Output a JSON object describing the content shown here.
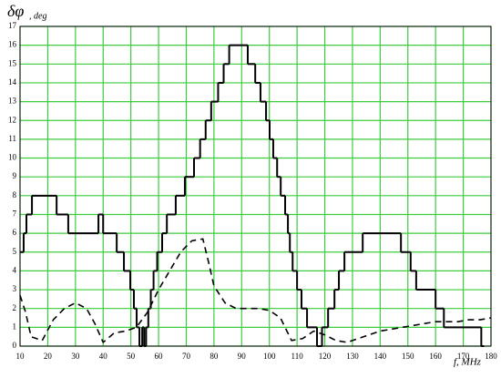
{
  "chart_data": {
    "type": "line",
    "ylabel": "δφ",
    "ylabel_sub": ", deg",
    "xlabel": "f, MHz",
    "xlim": [
      10,
      180
    ],
    "xticks": [
      10,
      20,
      30,
      40,
      50,
      60,
      70,
      80,
      90,
      100,
      110,
      120,
      130,
      140,
      150,
      160,
      170,
      180
    ],
    "ylim": [
      0,
      17
    ],
    "yticks": [
      0,
      1,
      2,
      3,
      4,
      5,
      6,
      7,
      8,
      9,
      10,
      11,
      12,
      13,
      14,
      15,
      16,
      17
    ],
    "grid": true,
    "grid_color": "#3ccc3c",
    "series": [
      {
        "color": "#000000",
        "linestyle": "solid",
        "drawstyle": "steps-post",
        "x": [
          10,
          11.3,
          12.3,
          14.3,
          23.2,
          27.4,
          38.3,
          40,
          44.9,
          47.5,
          49.8,
          51.1,
          52.1,
          53.1,
          54.1,
          54.8,
          55.5,
          56.3,
          57.2,
          58.2,
          59.5,
          61.3,
          63,
          66.2,
          69.5,
          72.8,
          75,
          77,
          79,
          81.5,
          83.5,
          85.5,
          87.6,
          92.2,
          94.9,
          96.8,
          98.8,
          100.1,
          101.4,
          102.8,
          104.1,
          105.7,
          106.7,
          107.4,
          108.4,
          110,
          111.6,
          113.6,
          117.2,
          119,
          121.2,
          123.5,
          125.1,
          127.1,
          133.7,
          147.5,
          151,
          153,
          160,
          163,
          176.5,
          177.5
        ],
        "values": [
          5,
          6,
          7,
          8,
          7,
          6,
          7,
          6,
          5,
          4,
          3,
          2,
          1,
          0,
          1,
          0,
          1,
          2,
          3,
          4,
          5,
          6,
          7,
          8,
          9,
          10,
          11,
          12,
          13,
          14,
          15,
          16,
          16,
          15,
          14,
          13,
          12,
          11,
          10,
          9,
          8,
          7,
          6,
          5,
          4,
          3,
          2,
          1,
          0,
          1,
          2,
          3,
          4,
          5,
          6,
          5,
          4,
          3,
          2,
          1,
          0,
          0
        ]
      },
      {
        "color": "#000000",
        "linestyle": "dashed",
        "drawstyle": "default",
        "x": [
          10,
          12,
          14,
          18,
          22,
          26,
          30,
          34,
          37,
          40,
          44,
          48,
          52,
          56,
          60,
          64,
          68,
          72,
          76,
          78,
          80,
          84,
          88,
          92,
          96,
          100,
          104,
          108,
          112,
          116,
          120,
          124,
          128,
          132,
          136,
          140,
          144,
          148,
          152,
          156,
          160,
          164,
          168,
          172,
          176,
          180
        ],
        "values": [
          2.7,
          1.8,
          0.5,
          0.3,
          1.4,
          2,
          2.3,
          2,
          1.2,
          0.2,
          0.7,
          0.8,
          1,
          1.8,
          3,
          4,
          5,
          5.6,
          5.7,
          4.5,
          3.2,
          2.3,
          2,
          2,
          2,
          1.9,
          1.5,
          0.3,
          0.4,
          0.8,
          0.6,
          0.3,
          0.2,
          0.4,
          0.6,
          0.8,
          0.9,
          1,
          1.1,
          1.2,
          1.3,
          1.3,
          1.3,
          1.4,
          1.4,
          1.5
        ]
      }
    ]
  }
}
